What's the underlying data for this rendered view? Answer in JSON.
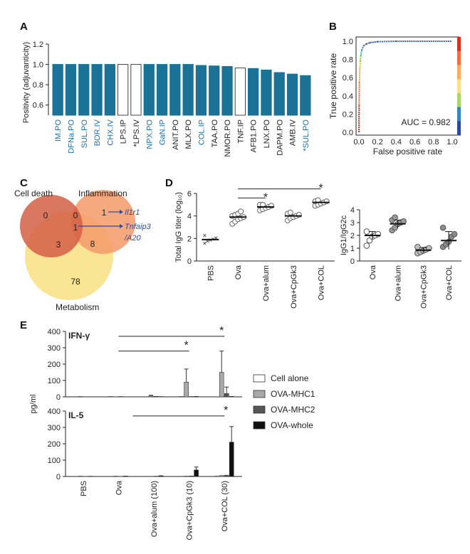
{
  "chart_data": [
    {
      "panel": "A",
      "type": "bar",
      "ylabel": "Positivity (adjuvanticity)",
      "yticks": [
        "1.2",
        "1.0",
        "0.8",
        "0.6"
      ],
      "ylim": [
        0.5,
        1.2
      ],
      "categories": [
        "IM.PO",
        "DFNa.PO",
        "SUL.PO",
        "BOR.IV",
        "CHX.IV",
        "LPS.IP",
        "*LPS.IV",
        "NPX.PO",
        "GaN.IP",
        "ANIT.PO",
        "MLX.PO",
        "COL.IP",
        "TAA.PO",
        "NMOR.PO",
        "TNF.IP",
        "AFB1.PO",
        "LNX.PO",
        "DAPM.PO",
        "AMB.IV",
        "*SUL.PO"
      ],
      "values": [
        1.0,
        1.0,
        1.0,
        1.0,
        1.0,
        1.0,
        1.0,
        1.0,
        1.0,
        1.0,
        1.0,
        0.99,
        0.985,
        0.98,
        0.965,
        0.96,
        0.945,
        0.92,
        0.905,
        0.89
      ],
      "filled": [
        true,
        true,
        true,
        true,
        true,
        false,
        false,
        true,
        true,
        true,
        true,
        true,
        true,
        true,
        false,
        true,
        true,
        true,
        true,
        true
      ],
      "label_colors": [
        "#1f6fb0",
        "#1f6fb0",
        "#1f6fb0",
        "#1f6fb0",
        "#1f6fb0",
        "#222222",
        "#222222",
        "#1f6fb0",
        "#1f6fb0",
        "#222222",
        "#222222",
        "#1f6fb0",
        "#222222",
        "#222222",
        "#222222",
        "#222222",
        "#222222",
        "#222222",
        "#222222",
        "#1f6fb0"
      ],
      "bar_color": "#1a7296"
    },
    {
      "panel": "B",
      "type": "line",
      "xlabel": "False positive rate",
      "ylabel": "True positive rate",
      "ticks": [
        "0.0",
        "0.2",
        "0.4",
        "0.6",
        "0.8",
        "1.0"
      ],
      "x": [
        0,
        0.002,
        0.005,
        0.01,
        0.015,
        0.02,
        0.03,
        0.05,
        0.08,
        0.12,
        0.2,
        0.4,
        0.7,
        1.0
      ],
      "y": [
        0,
        0.3,
        0.55,
        0.7,
        0.78,
        0.84,
        0.9,
        0.95,
        0.97,
        0.985,
        0.995,
        1.0,
        1.0,
        1.0
      ],
      "annotation": "AUC = 0.982"
    },
    {
      "panel": "C",
      "type": "venn",
      "sets": [
        "Cell death",
        "Inflammation",
        "Metabolism"
      ],
      "regions": {
        "death_only": "0",
        "death_infl": "0",
        "infl_only": "1",
        "death_meta": "3",
        "center": "1",
        "infl_meta": "8",
        "meta_only": "78"
      },
      "callouts": [
        "Il1r1",
        "Tnfaip3",
        "/A20"
      ],
      "colors": {
        "death": "#d45f45",
        "infl": "#f59a68",
        "meta": "#f7dc6f",
        "callout": "#2e4a9c"
      }
    },
    {
      "panel": "D-left",
      "type": "scatter",
      "ylabel": "Total IgG titer (log₁₀)",
      "yticks": [
        "6",
        "4",
        "2",
        "0"
      ],
      "ylim": [
        0,
        6
      ],
      "categories": [
        "PBS",
        "Ova",
        "Ova+alum",
        "Ova+CpGk3",
        "Ova+COL"
      ],
      "means": [
        1.9,
        3.9,
        4.8,
        4.0,
        5.2
      ],
      "points": [
        [
          1.6,
          1.8,
          1.9,
          2.0,
          2.1,
          2.3
        ],
        [
          3.3,
          3.5,
          3.7,
          3.8,
          3.9,
          4.0,
          4.1,
          4.2,
          4.4
        ],
        [
          4.5,
          4.6,
          4.7,
          4.8,
          4.9,
          5.0,
          5.0
        ],
        [
          3.6,
          3.8,
          3.9,
          4.0,
          4.1,
          4.2,
          4.3
        ],
        [
          4.9,
          5.0,
          5.1,
          5.2,
          5.3,
          5.3,
          5.4
        ]
      ],
      "significance": [
        "*",
        "*"
      ]
    },
    {
      "panel": "D-right",
      "type": "scatter",
      "ylabel": "IgG1/IgG2c",
      "yticks": [
        "4",
        "3",
        "2",
        "1",
        "0"
      ],
      "ylim": [
        0,
        4
      ],
      "categories": [
        "Ova",
        "Ova+alum",
        "Ova+CpGk3",
        "Ova+COL"
      ],
      "means": [
        2.0,
        2.9,
        0.85,
        1.6
      ],
      "errors": [
        0.3,
        0.3,
        0.2,
        0.7
      ],
      "points": [
        [
          1.2,
          1.6,
          1.9,
          2.0,
          2.1,
          2.3
        ],
        [
          2.4,
          2.6,
          2.9,
          3.0,
          3.1,
          3.2,
          3.4
        ],
        [
          0.6,
          0.7,
          0.8,
          0.9,
          1.0,
          1.1
        ],
        [
          1.1,
          1.3,
          1.5,
          1.9,
          2.1,
          2.6
        ]
      ],
      "fills": [
        "#ffffff",
        "#9a9a9a",
        "#c0c0c0",
        "#8a8a8a"
      ]
    },
    {
      "panel": "E",
      "type": "bar",
      "ylabel": "pg/ml",
      "subplots": [
        {
          "title": "IFN-γ",
          "yticks": [
            "400",
            "300",
            "200",
            "100",
            "0"
          ],
          "ylim": [
            0,
            400
          ],
          "series_values": [
            [
              1,
              2,
              1,
              2,
              1
            ],
            [
              2,
              1,
              6,
              90,
              150
            ],
            [
              1,
              2,
              3,
              2,
              20
            ],
            [
              1,
              1,
              2,
              3,
              3
            ]
          ],
          "errors": [
            [
              0,
              0,
              0,
              0,
              0
            ],
            [
              0,
              0,
              3,
              80,
              130
            ],
            [
              0,
              0,
              0,
              0,
              40
            ],
            [
              0,
              0,
              0,
              0,
              0
            ]
          ],
          "significance": [
            "*",
            "*"
          ]
        },
        {
          "title": "IL-5",
          "yticks": [
            "400",
            "300",
            "200",
            "100",
            "0"
          ],
          "ylim": [
            0,
            400
          ],
          "series_values": [
            [
              1,
              1,
              1,
              1,
              2
            ],
            [
              2,
              2,
              1,
              2,
              6
            ],
            [
              1,
              1,
              2,
              3,
              8
            ],
            [
              2,
              3,
              5,
              40,
              210
            ]
          ],
          "errors": [
            [
              0,
              0,
              0,
              0,
              0
            ],
            [
              0,
              0,
              0,
              0,
              0
            ],
            [
              0,
              0,
              0,
              0,
              0
            ],
            [
              0,
              0,
              0,
              18,
              95
            ]
          ],
          "significance": [
            "*"
          ]
        }
      ],
      "categories": [
        "PBS",
        "Ova",
        "Ova+alum (100)",
        "Ova+CpGk3 (10)",
        "Ova+COL (30)"
      ],
      "series": [
        {
          "name": "Cell alone",
          "color": "#ffffff"
        },
        {
          "name": "OVA-MHC1",
          "color": "#a9a9a9"
        },
        {
          "name": "OVA-MHC2",
          "color": "#555555"
        },
        {
          "name": "OVA-whole",
          "color": "#111111"
        }
      ]
    }
  ],
  "panel_labels": {
    "a": "A",
    "b": "B",
    "c": "C",
    "d": "D",
    "e": "E"
  }
}
